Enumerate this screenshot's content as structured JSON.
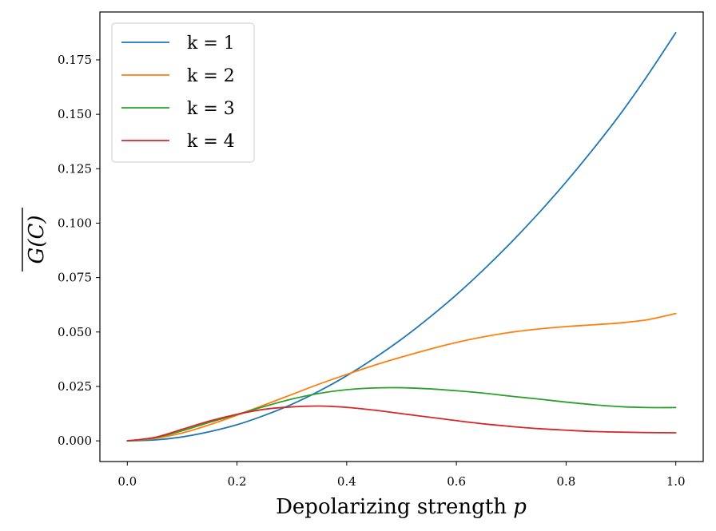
{
  "chart_data": {
    "type": "line",
    "title": "",
    "xlabel": "Depolarizing strength p",
    "ylabel": "G(C) overline",
    "xlabel_text": "Depolarizing strength",
    "xlabel_var": "p",
    "ylabel_text": "G(C)",
    "xlim": [
      -0.05,
      1.05
    ],
    "ylim": [
      -0.0095,
      0.197
    ],
    "xticks": [
      0.0,
      0.2,
      0.4,
      0.6,
      0.8,
      1.0
    ],
    "xtick_labels": [
      "0.0",
      "0.2",
      "0.4",
      "0.6",
      "0.8",
      "1.0"
    ],
    "yticks": [
      0.0,
      0.025,
      0.05,
      0.075,
      0.1,
      0.125,
      0.15,
      0.175
    ],
    "ytick_labels": [
      "0.000",
      "0.025",
      "0.050",
      "0.075",
      "0.100",
      "0.125",
      "0.150",
      "0.175"
    ],
    "grid": false,
    "legend_position": "top-left",
    "x": [
      0.0,
      0.05,
      0.1,
      0.15,
      0.2,
      0.25,
      0.3,
      0.35,
      0.4,
      0.45,
      0.5,
      0.55,
      0.6,
      0.65,
      0.7,
      0.75,
      0.8,
      0.85,
      0.9,
      0.95,
      1.0
    ],
    "series": [
      {
        "name": "k = 1",
        "color": "#1f77b4",
        "values": [
          0.0,
          0.0004,
          0.0018,
          0.0042,
          0.0074,
          0.0117,
          0.0168,
          0.0229,
          0.0299,
          0.0379,
          0.0467,
          0.0565,
          0.0671,
          0.0787,
          0.0912,
          0.1046,
          0.1189,
          0.1342,
          0.1505,
          0.1684,
          0.1875
        ]
      },
      {
        "name": "k = 2",
        "color": "#ff7f0e",
        "values": [
          0.0,
          0.0011,
          0.0036,
          0.0074,
          0.0118,
          0.0165,
          0.0213,
          0.0261,
          0.0305,
          0.0347,
          0.0385,
          0.042,
          0.0452,
          0.0478,
          0.0499,
          0.0514,
          0.0525,
          0.0533,
          0.0542,
          0.0557,
          0.0585
        ]
      },
      {
        "name": "k = 3",
        "color": "#2ca02c",
        "values": [
          0.0,
          0.0014,
          0.0046,
          0.0085,
          0.0121,
          0.0158,
          0.0192,
          0.0218,
          0.0235,
          0.0243,
          0.0244,
          0.0239,
          0.023,
          0.0219,
          0.0205,
          0.0192,
          0.0178,
          0.0166,
          0.0157,
          0.0153,
          0.0153
        ]
      },
      {
        "name": "k = 4",
        "color": "#d62728",
        "values": [
          0.0,
          0.0016,
          0.0053,
          0.0091,
          0.0122,
          0.0145,
          0.0156,
          0.016,
          0.0154,
          0.0141,
          0.0125,
          0.0109,
          0.0093,
          0.0078,
          0.0066,
          0.0056,
          0.0049,
          0.0043,
          0.004,
          0.0038,
          0.0037
        ]
      }
    ]
  }
}
